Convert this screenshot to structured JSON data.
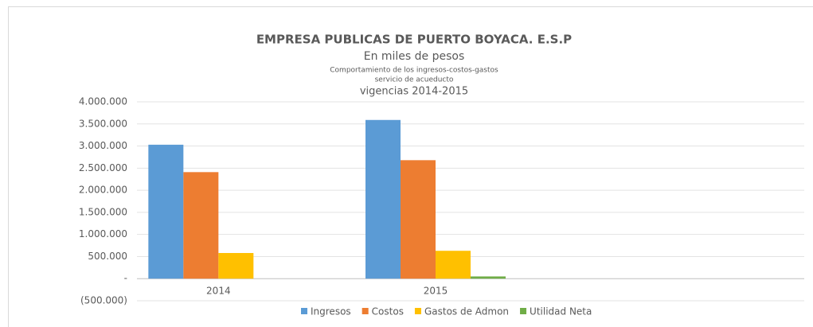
{
  "chart_data": {
    "type": "bar",
    "title": "EMPRESA PUBLICAS DE PUERTO BOYACA. E.S.P",
    "subtitles": [
      "En miles de pesos",
      "Comportamiento de los ingresos-costos-gastos",
      "servicio de acueducto",
      "vigencias 2014-2015"
    ],
    "categories": [
      "2014",
      "2015",
      null
    ],
    "series": [
      {
        "name": "Ingresos",
        "color": "#5b9bd5",
        "values": [
          3030000,
          3590000,
          null
        ]
      },
      {
        "name": "Costos",
        "color": "#ed7d31",
        "values": [
          2410000,
          2680000,
          null
        ]
      },
      {
        "name": "Gastos de Admon",
        "color": "#ffc000",
        "values": [
          580000,
          630000,
          null
        ]
      },
      {
        "name": "Utilidad Neta",
        "color": "#70ad47",
        "values": [
          0,
          50000,
          null
        ]
      }
    ],
    "ylim": [
      -500000,
      4000000
    ],
    "yticks": [
      {
        "value": -500000,
        "label": "(500.000)"
      },
      {
        "value": 0,
        "label": "-"
      },
      {
        "value": 500000,
        "label": "500.000"
      },
      {
        "value": 1000000,
        "label": "1.000.000"
      },
      {
        "value": 1500000,
        "label": "1.500.000"
      },
      {
        "value": 2000000,
        "label": "2.000.000"
      },
      {
        "value": 2500000,
        "label": "2.500.000"
      },
      {
        "value": 3000000,
        "label": "3.000.000"
      },
      {
        "value": 3500000,
        "label": "3.500.000"
      },
      {
        "value": 4000000,
        "label": "4.000.000"
      }
    ],
    "grid": true,
    "legend": "bottom"
  }
}
